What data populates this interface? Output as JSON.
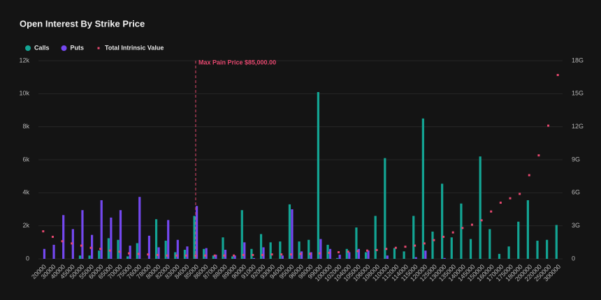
{
  "chart_data": {
    "type": "bar",
    "title": "Open Interest By Strike Price",
    "categories": [
      "20000",
      "30000",
      "40000",
      "45000",
      "50000",
      "55000",
      "60000",
      "65000",
      "70000",
      "75000",
      "76000",
      "78000",
      "80000",
      "82000",
      "83000",
      "84000",
      "85000",
      "86000",
      "87000",
      "88000",
      "89000",
      "90000",
      "91000",
      "92000",
      "93000",
      "94000",
      "95000",
      "96000",
      "98000",
      "99000",
      "100000",
      "102000",
      "104000",
      "105000",
      "106000",
      "108000",
      "110000",
      "112000",
      "114000",
      "115000",
      "120000",
      "125000",
      "130000",
      "135000",
      "140000",
      "145000",
      "150000",
      "160000",
      "170000",
      "175000",
      "180000",
      "200000",
      "220000",
      "250000",
      "300000"
    ],
    "series": [
      {
        "name": "Calls",
        "color": "#13a594",
        "values": [
          0,
          0,
          0,
          0,
          200,
          200,
          500,
          1250,
          1150,
          150,
          950,
          0,
          2400,
          1100,
          400,
          550,
          2600,
          600,
          200,
          1300,
          150,
          2950,
          600,
          1500,
          1000,
          1050,
          3300,
          1050,
          1150,
          10100,
          850,
          50,
          600,
          1900,
          400,
          2600,
          6100,
          650,
          450,
          2600,
          8500,
          1650,
          4550,
          1300,
          3350,
          1200,
          6200,
          1800,
          300,
          750,
          2250,
          3550,
          1100,
          1150,
          2050
        ]
      },
      {
        "name": "Puts",
        "color": "#7448f0",
        "values": [
          600,
          850,
          2650,
          1800,
          2950,
          1450,
          3550,
          2500,
          2950,
          800,
          3750,
          1400,
          700,
          2350,
          1150,
          750,
          3200,
          650,
          250,
          550,
          200,
          1000,
          50,
          700,
          0,
          200,
          3000,
          450,
          400,
          1200,
          600,
          250,
          400,
          600,
          500,
          0,
          200,
          0,
          0,
          100,
          500,
          0,
          50,
          0,
          0,
          0,
          0,
          0,
          0,
          0,
          0,
          0,
          0,
          0,
          0
        ]
      },
      {
        "name": "Total Intrinsic Value",
        "color": "#e5476e",
        "type": "scatter",
        "axis": "y2",
        "values": [
          2.5,
          2.0,
          1.6,
          1.4,
          1.2,
          1.0,
          0.9,
          0.75,
          0.65,
          0.5,
          0.45,
          0.4,
          0.35,
          0.3,
          0.3,
          0.3,
          0.3,
          0.3,
          0.3,
          0.3,
          0.3,
          0.35,
          0.35,
          0.35,
          0.4,
          0.4,
          0.4,
          0.45,
          0.45,
          0.5,
          0.55,
          0.6,
          0.65,
          0.7,
          0.75,
          0.8,
          0.9,
          1.0,
          1.1,
          1.2,
          1.4,
          1.7,
          2.0,
          2.4,
          2.8,
          3.1,
          3.5,
          4.3,
          5.1,
          5.5,
          5.9,
          7.6,
          9.4,
          12.1,
          16.7
        ]
      }
    ],
    "ylim": [
      0,
      12000
    ],
    "yticks": [
      0,
      {
        "value": 2000,
        "label": "2k"
      },
      {
        "value": 4000,
        "label": "4k"
      },
      {
        "value": 6000,
        "label": "6k"
      },
      {
        "value": 8000,
        "label": "8k"
      },
      {
        "value": 10000,
        "label": "10k"
      },
      {
        "value": 12000,
        "label": "12k"
      }
    ],
    "y2lim": [
      0,
      18
    ],
    "y2ticks": [
      0,
      {
        "value": 3,
        "label": "3G"
      },
      {
        "value": 6,
        "label": "6G"
      },
      {
        "value": 9,
        "label": "9G"
      },
      {
        "value": 12,
        "label": "12G"
      },
      {
        "value": 15,
        "label": "15G"
      },
      {
        "value": 18,
        "label": "18G"
      }
    ],
    "grid": true,
    "annotation": {
      "category": "85000",
      "text": "Max Pain Price $85,000.00"
    }
  }
}
